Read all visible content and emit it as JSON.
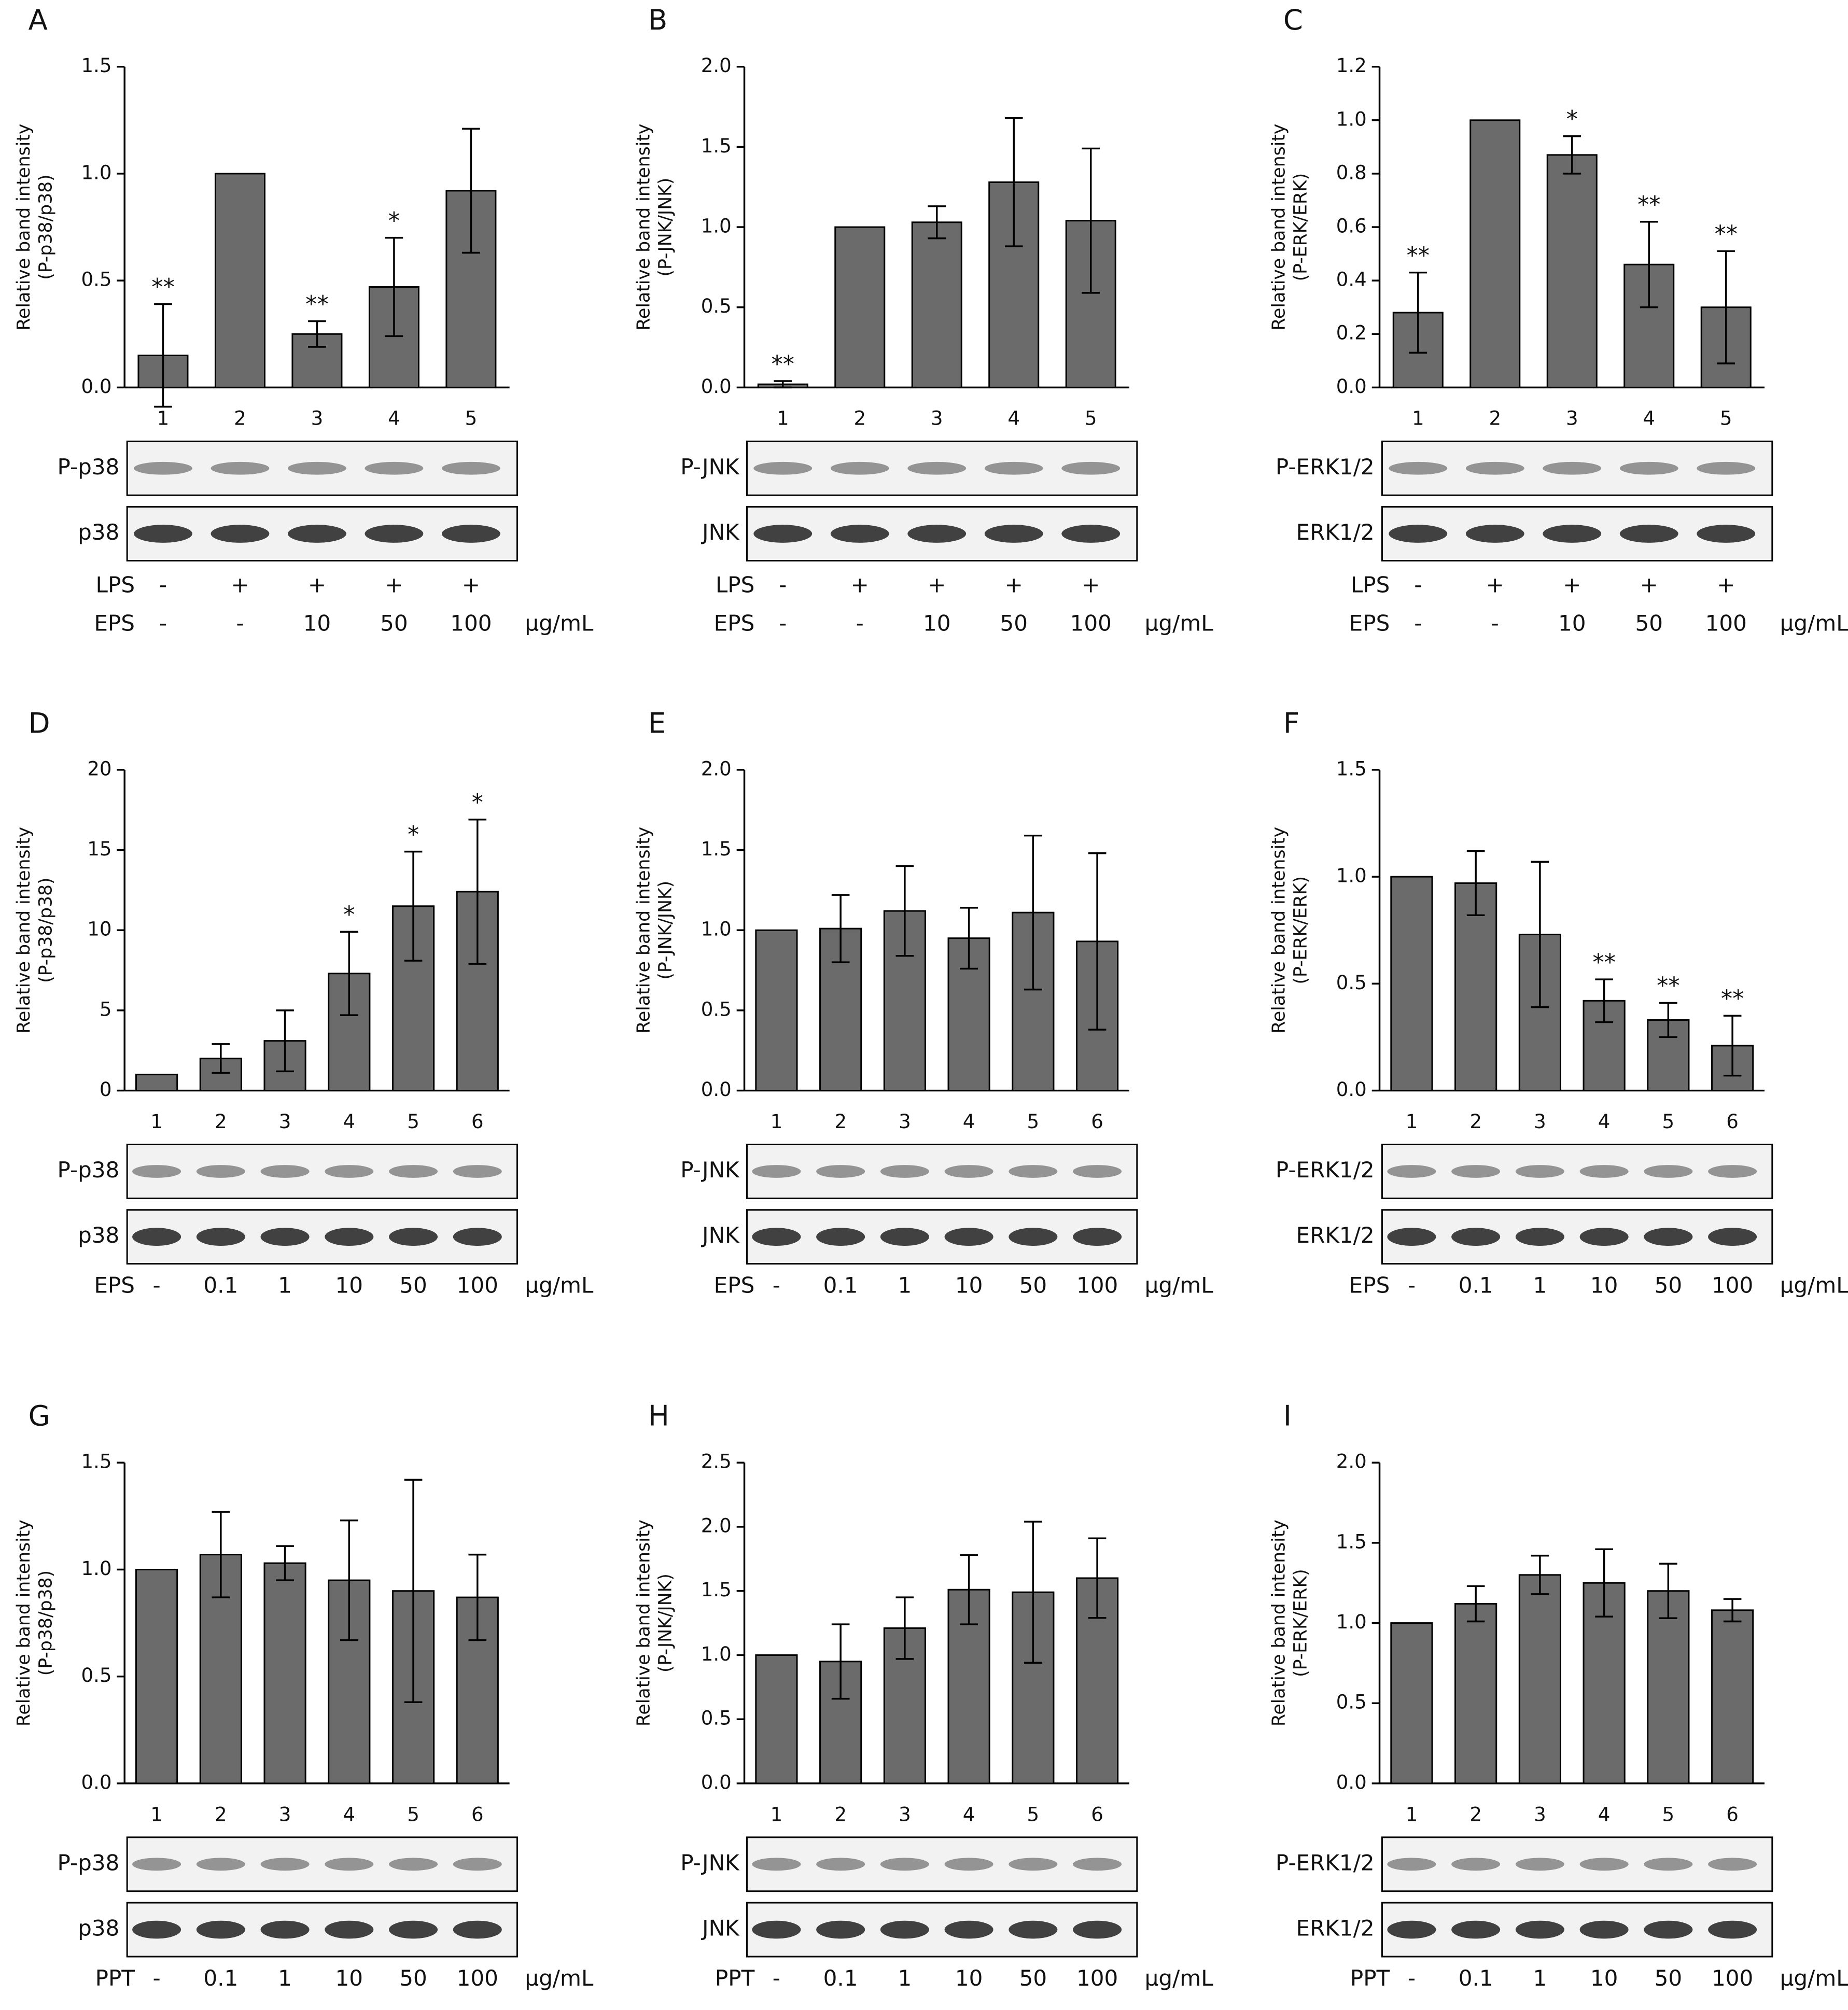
{
  "chart_data": [
    {
      "type": "bar",
      "panel": "A",
      "y_label": [
        "Relative band intensity",
        "(P-p38/p38)"
      ],
      "categories": [
        "1",
        "2",
        "3",
        "4",
        "5"
      ],
      "values": [
        0.15,
        1.0,
        0.25,
        0.47,
        0.92
      ],
      "errors": [
        0.24,
        null,
        0.06,
        0.23,
        0.29
      ],
      "annotations": [
        "**",
        null,
        "**",
        "*",
        null
      ],
      "color": "#6b6b6b",
      "ylim": [
        0,
        1.5
      ],
      "yticks": [
        {
          "value": 0,
          "label": "0.0"
        },
        0.5,
        {
          "value": 1,
          "label": "1.0"
        },
        1.5
      ],
      "blots": [
        "P-p38",
        "p38"
      ],
      "treatments": [
        {
          "name": "LPS",
          "labels": [
            "-",
            "+",
            "+",
            "+",
            "+"
          ]
        },
        {
          "name": "EPS",
          "labels": [
            "-",
            "-",
            "10",
            "50",
            "100"
          ]
        }
      ],
      "unit": "μg/mL"
    },
    {
      "type": "bar",
      "panel": "B",
      "y_label": [
        "Relative band intensity",
        "(P-JNK/JNK)"
      ],
      "categories": [
        "1",
        "2",
        "3",
        "4",
        "5"
      ],
      "values": [
        0.02,
        1.0,
        1.03,
        1.28,
        1.04
      ],
      "errors": [
        0.02,
        null,
        0.1,
        0.4,
        0.45
      ],
      "annotations": [
        "**",
        null,
        null,
        null,
        null
      ],
      "color": "#6b6b6b",
      "ylim": [
        0,
        2
      ],
      "yticks": [
        {
          "value": 0,
          "label": "0.0"
        },
        0.5,
        {
          "value": 1,
          "label": "1.0"
        },
        1.5,
        {
          "value": 2,
          "label": "2.0"
        }
      ],
      "blots": [
        "P-JNK",
        "JNK"
      ],
      "treatments": [
        {
          "name": "LPS",
          "labels": [
            "-",
            "+",
            "+",
            "+",
            "+"
          ]
        },
        {
          "name": "EPS",
          "labels": [
            "-",
            "-",
            "10",
            "50",
            "100"
          ]
        }
      ],
      "unit": "μg/mL"
    },
    {
      "type": "bar",
      "panel": "C",
      "y_label": [
        "Relative band intensity",
        "(P-ERK/ERK)"
      ],
      "categories": [
        "1",
        "2",
        "3",
        "4",
        "5"
      ],
      "values": [
        0.28,
        1.0,
        0.87,
        0.46,
        0.3
      ],
      "errors": [
        0.15,
        null,
        0.07,
        0.16,
        0.21
      ],
      "annotations": [
        "**",
        null,
        "*",
        "**",
        "**"
      ],
      "color": "#6b6b6b",
      "ylim": [
        0,
        1.2
      ],
      "yticks": [
        {
          "value": 0,
          "label": "0.0"
        },
        0.2,
        0.4,
        0.6,
        0.8,
        {
          "value": 1,
          "label": "1.0"
        },
        1.2
      ],
      "blots": [
        "P-ERK1/2",
        "ERK1/2"
      ],
      "treatments": [
        {
          "name": "LPS",
          "labels": [
            "-",
            "+",
            "+",
            "+",
            "+"
          ]
        },
        {
          "name": "EPS",
          "labels": [
            "-",
            "-",
            "10",
            "50",
            "100"
          ]
        }
      ],
      "unit": "μg/mL"
    },
    {
      "type": "bar",
      "panel": "D",
      "y_label": [
        "Relative band intensity",
        "(P-p38/p38)"
      ],
      "categories": [
        "1",
        "2",
        "3",
        "4",
        "5",
        "6"
      ],
      "values": [
        1.0,
        2.0,
        3.1,
        7.3,
        11.5,
        12.4
      ],
      "errors": [
        null,
        0.9,
        1.9,
        2.6,
        3.4,
        4.5
      ],
      "annotations": [
        null,
        null,
        null,
        "*",
        "*",
        "*"
      ],
      "color": "#6b6b6b",
      "ylim": [
        0,
        20
      ],
      "yticks": [
        0,
        5,
        10,
        15,
        20
      ],
      "blots": [
        "P-p38",
        "p38"
      ],
      "treatments": [
        {
          "name": "EPS",
          "labels": [
            "-",
            "0.1",
            "1",
            "10",
            "50",
            "100"
          ]
        }
      ],
      "unit": "μg/mL"
    },
    {
      "type": "bar",
      "panel": "E",
      "y_label": [
        "Relative band intensity",
        "(P-JNK/JNK)"
      ],
      "categories": [
        "1",
        "2",
        "3",
        "4",
        "5",
        "6"
      ],
      "values": [
        1.0,
        1.01,
        1.12,
        0.95,
        1.11,
        0.93
      ],
      "errors": [
        null,
        0.21,
        0.28,
        0.19,
        0.48,
        0.55
      ],
      "annotations": [
        null,
        null,
        null,
        null,
        null,
        null
      ],
      "color": "#6b6b6b",
      "ylim": [
        0,
        2
      ],
      "yticks": [
        {
          "value": 0,
          "label": "0.0"
        },
        0.5,
        {
          "value": 1,
          "label": "1.0"
        },
        1.5,
        {
          "value": 2,
          "label": "2.0"
        }
      ],
      "blots": [
        "P-JNK",
        "JNK"
      ],
      "treatments": [
        {
          "name": "EPS",
          "labels": [
            "-",
            "0.1",
            "1",
            "10",
            "50",
            "100"
          ]
        }
      ],
      "unit": "μg/mL"
    },
    {
      "type": "bar",
      "panel": "F",
      "y_label": [
        "Relative band intensity",
        "(P-ERK/ERK)"
      ],
      "categories": [
        "1",
        "2",
        "3",
        "4",
        "5",
        "6"
      ],
      "values": [
        1.0,
        0.97,
        0.73,
        0.42,
        0.33,
        0.21
      ],
      "errors": [
        null,
        0.15,
        0.34,
        0.1,
        0.08,
        0.14
      ],
      "annotations": [
        null,
        null,
        null,
        "**",
        "**",
        "**"
      ],
      "color": "#6b6b6b",
      "ylim": [
        0,
        1.5
      ],
      "yticks": [
        {
          "value": 0,
          "label": "0.0"
        },
        0.5,
        {
          "value": 1,
          "label": "1.0"
        },
        1.5
      ],
      "blots": [
        "P-ERK1/2",
        "ERK1/2"
      ],
      "treatments": [
        {
          "name": "EPS",
          "labels": [
            "-",
            "0.1",
            "1",
            "10",
            "50",
            "100"
          ]
        }
      ],
      "unit": "μg/mL"
    },
    {
      "type": "bar",
      "panel": "G",
      "y_label": [
        "Relative band intensity",
        "(P-p38/p38)"
      ],
      "categories": [
        "1",
        "2",
        "3",
        "4",
        "5",
        "6"
      ],
      "values": [
        1.0,
        1.07,
        1.03,
        0.95,
        0.9,
        0.87
      ],
      "errors": [
        null,
        0.2,
        0.08,
        0.28,
        0.52,
        0.2
      ],
      "annotations": [
        null,
        null,
        null,
        null,
        null,
        null
      ],
      "color": "#6b6b6b",
      "ylim": [
        0,
        1.5
      ],
      "yticks": [
        {
          "value": 0,
          "label": "0.0"
        },
        0.5,
        {
          "value": 1,
          "label": "1.0"
        },
        1.5
      ],
      "blots": [
        "P-p38",
        "p38"
      ],
      "treatments": [
        {
          "name": "PPT",
          "labels": [
            "-",
            "0.1",
            "1",
            "10",
            "50",
            "100"
          ]
        }
      ],
      "unit": "μg/mL"
    },
    {
      "type": "bar",
      "panel": "H",
      "y_label": [
        "Relative band intensity",
        "(P-JNK/JNK)"
      ],
      "categories": [
        "1",
        "2",
        "3",
        "4",
        "5",
        "6"
      ],
      "values": [
        1.0,
        0.95,
        1.21,
        1.51,
        1.49,
        1.6
      ],
      "errors": [
        null,
        0.29,
        0.24,
        0.27,
        0.55,
        0.31
      ],
      "annotations": [
        null,
        null,
        null,
        null,
        null,
        null
      ],
      "color": "#6b6b6b",
      "ylim": [
        0,
        2.5
      ],
      "yticks": [
        {
          "value": 0,
          "label": "0.0"
        },
        0.5,
        {
          "value": 1,
          "label": "1.0"
        },
        1.5,
        {
          "value": 2,
          "label": "2.0"
        },
        2.5
      ],
      "blots": [
        "P-JNK",
        "JNK"
      ],
      "treatments": [
        {
          "name": "PPT",
          "labels": [
            "-",
            "0.1",
            "1",
            "10",
            "50",
            "100"
          ]
        }
      ],
      "unit": "μg/mL"
    },
    {
      "type": "bar",
      "panel": "I",
      "y_label": [
        "Relative band intensity",
        "(P-ERK/ERK)"
      ],
      "categories": [
        "1",
        "2",
        "3",
        "4",
        "5",
        "6"
      ],
      "values": [
        1.0,
        1.12,
        1.3,
        1.25,
        1.2,
        1.08
      ],
      "errors": [
        null,
        0.11,
        0.12,
        0.21,
        0.17,
        0.07
      ],
      "annotations": [
        null,
        null,
        null,
        null,
        null,
        null
      ],
      "color": "#6b6b6b",
      "ylim": [
        0,
        2
      ],
      "yticks": [
        {
          "value": 0,
          "label": "0.0"
        },
        0.5,
        {
          "value": 1,
          "label": "1.0"
        },
        1.5,
        {
          "value": 2,
          "label": "2.0"
        }
      ],
      "blots": [
        "P-ERK1/2",
        "ERK1/2"
      ],
      "treatments": [
        {
          "name": "PPT",
          "labels": [
            "-",
            "0.1",
            "1",
            "10",
            "50",
            "100"
          ]
        }
      ],
      "unit": "μg/mL"
    }
  ]
}
